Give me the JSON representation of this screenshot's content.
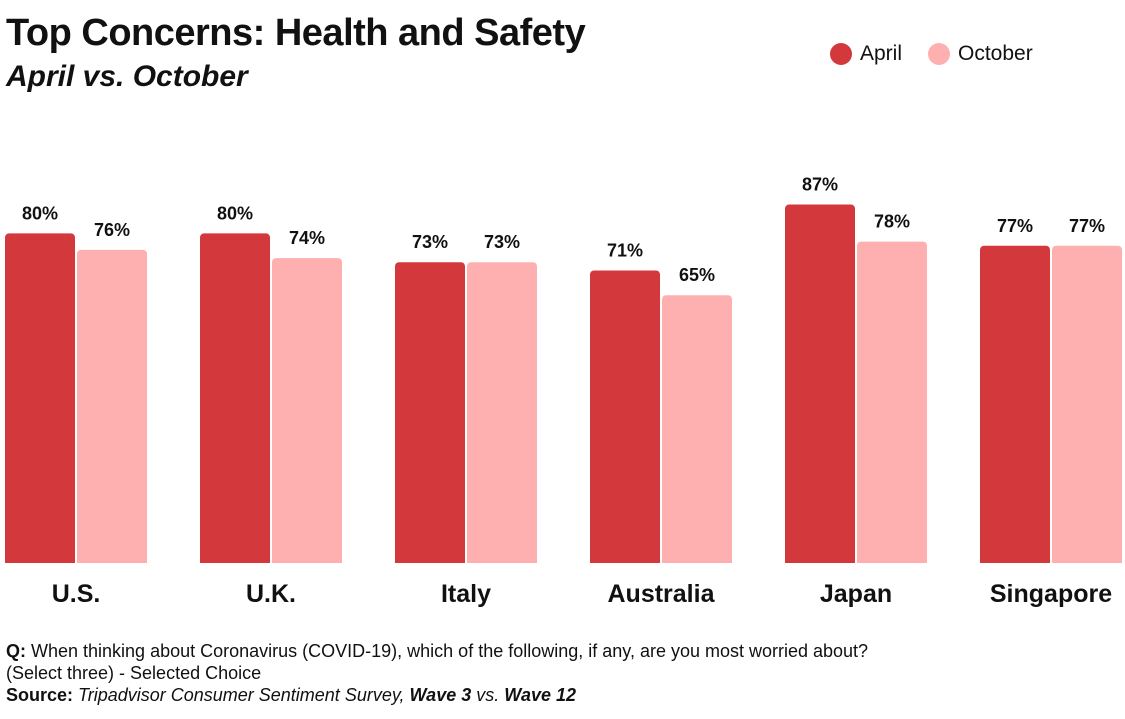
{
  "chart_data": {
    "type": "bar",
    "title": "Top Concerns: Health and Safety",
    "subtitle": "April vs. October",
    "categories": [
      "U.S.",
      "U.K.",
      "Italy",
      "Australia",
      "Japan",
      "Singapore"
    ],
    "series": [
      {
        "name": "April",
        "values": [
          80,
          80,
          73,
          71,
          87,
          77
        ],
        "color": "#d3383c"
      },
      {
        "name": "October",
        "values": [
          76,
          74,
          73,
          65,
          78,
          77
        ],
        "color": "#feb0b0"
      }
    ],
    "value_suffix": "%",
    "ylim": [
      0,
      100
    ],
    "legend_position": "top-right",
    "grid": false
  },
  "footnote": {
    "q_label": "Q:",
    "q_text": " When thinking about Coronavirus (COVID-19), which of the following, if any, are you most worried about?",
    "q_text_2": "(Select three) - Selected Choice",
    "source_label": "Source:",
    "source_part1": "Tripadvisor Consumer Sentiment Survey,",
    "source_part2": "Wave 3",
    "source_part3": "vs.",
    "source_part4": "Wave 12"
  }
}
